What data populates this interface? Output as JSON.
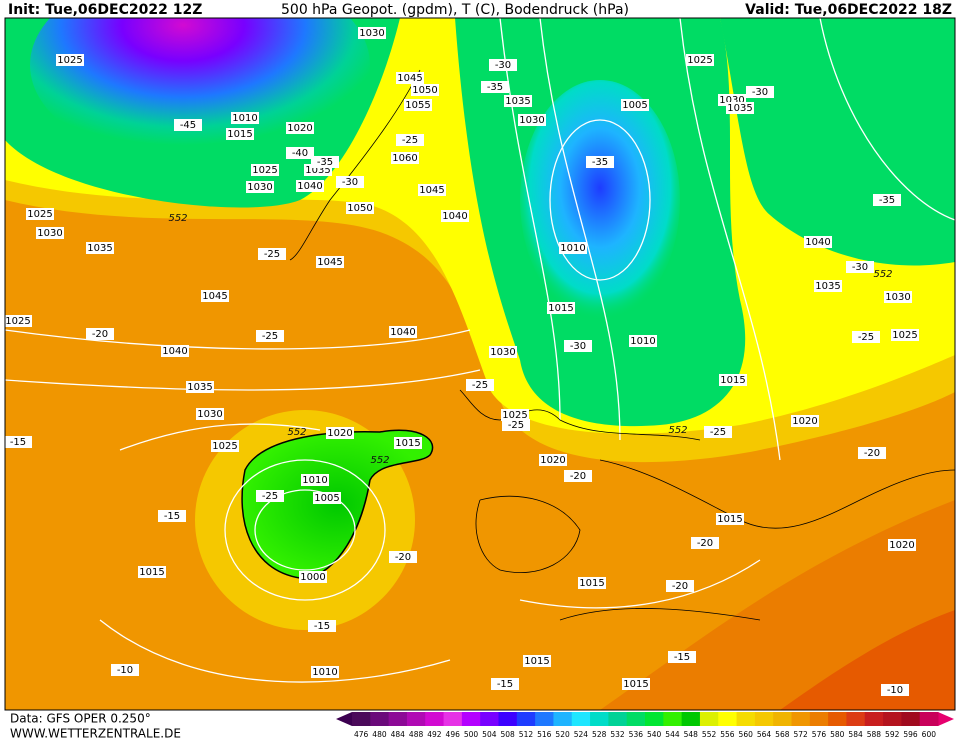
{
  "header": {
    "init": "Init: Tue,06DEC2022 12Z",
    "title": "500 hPa Geopot. (gpdm), T (C), Bodendruck (hPa)",
    "valid": "Valid: Tue,06DEC2022 18Z"
  },
  "map": {
    "pressure_labels": [
      1030,
      1025,
      1045,
      1050,
      1055,
      1010,
      1015,
      1020,
      1025,
      1030,
      1040,
      1035,
      1060,
      1045,
      1050,
      1040,
      1045,
      1025,
      1030,
      1035,
      1045,
      1025,
      1040,
      1040,
      1035,
      1030,
      1025,
      1020,
      1015,
      1010,
      1005,
      1000,
      1015,
      1010,
      1035,
      1030,
      1005,
      1010,
      1015,
      1010,
      1030,
      1025,
      1020,
      1015,
      1020,
      1015,
      1015,
      1015,
      1015,
      1020,
      1025,
      1030,
      1035,
      1040,
      1035,
      1030,
      1025
    ],
    "temperature_labels": [
      -30,
      -35,
      -45,
      -40,
      -35,
      -25,
      -30,
      -35,
      -25,
      -20,
      -25,
      -30,
      -25,
      -25,
      -15,
      -25,
      -15,
      -20,
      -20,
      -20,
      -20,
      -25,
      -15,
      -15,
      -15,
      -10,
      -10,
      -20,
      -25,
      -30,
      -35,
      -30
    ],
    "geopotential_labels": [
      552,
      552,
      552,
      552,
      552
    ]
  },
  "legend": {
    "values": [
      476,
      480,
      484,
      488,
      492,
      496,
      500,
      504,
      508,
      512,
      516,
      520,
      524,
      528,
      532,
      536,
      540,
      544,
      548,
      552,
      556,
      560,
      564,
      568,
      572,
      576,
      580,
      584,
      588,
      592,
      596,
      600
    ],
    "colors": [
      "#4b0a5a",
      "#6a0a7a",
      "#8c0a96",
      "#b00ab4",
      "#d20ad2",
      "#e632e6",
      "#b400ff",
      "#7800ff",
      "#3c00ff",
      "#1e3cff",
      "#1e78ff",
      "#1eb4ff",
      "#1ee6ff",
      "#00dcc8",
      "#00d296",
      "#00dc64",
      "#00e632",
      "#32f000",
      "#00c800",
      "#dcf000",
      "#ffff00",
      "#f5dc00",
      "#f5c800",
      "#f0b400",
      "#f09600",
      "#eb7d00",
      "#e65a00",
      "#dc3c14",
      "#c81e1e",
      "#b4141e",
      "#a00a1e",
      "#c8005a"
    ]
  },
  "footer": {
    "data": "Data: GFS OPER 0.250°",
    "site": "WWW.WETTERZENTRALE.DE"
  }
}
